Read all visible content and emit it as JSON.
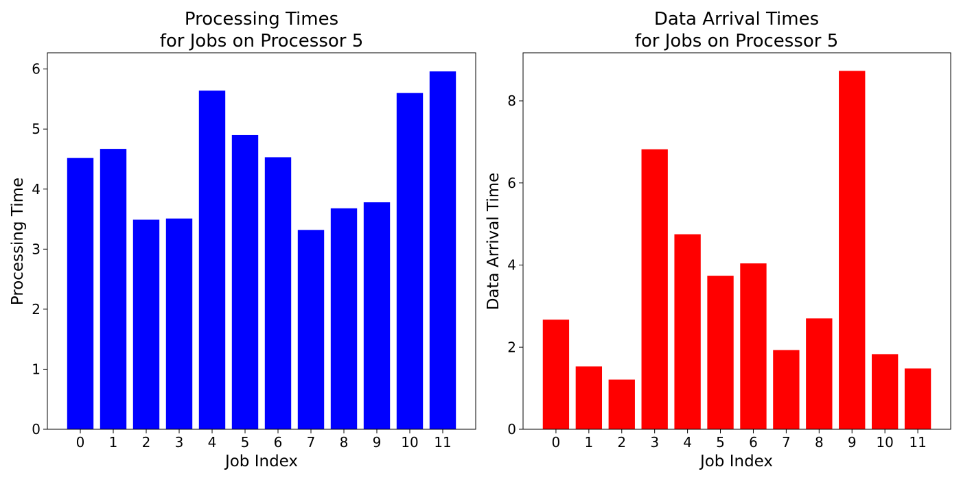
{
  "chart_data": [
    {
      "type": "bar",
      "title_lines": [
        "Processing Times",
        "for Jobs on Processor 5"
      ],
      "xlabel": "Job Index",
      "ylabel": "Processing Time",
      "categories": [
        "0",
        "1",
        "2",
        "3",
        "4",
        "5",
        "6",
        "7",
        "8",
        "9",
        "10",
        "11"
      ],
      "values": [
        4.52,
        4.67,
        3.49,
        3.51,
        5.64,
        4.9,
        4.53,
        3.32,
        3.68,
        3.78,
        5.6,
        5.96
      ],
      "ylim": [
        0,
        6.27
      ],
      "yticks": [
        0,
        1,
        2,
        3,
        4,
        5,
        6
      ],
      "color": "#0000ff",
      "grid": false
    },
    {
      "type": "bar",
      "title_lines": [
        "Data Arrival Times",
        "for Jobs on Processor 5"
      ],
      "xlabel": "Job Index",
      "ylabel": "Data Arrival Time",
      "categories": [
        "0",
        "1",
        "2",
        "3",
        "4",
        "5",
        "6",
        "7",
        "8",
        "9",
        "10",
        "11"
      ],
      "values": [
        2.67,
        1.53,
        1.21,
        6.82,
        4.75,
        3.74,
        4.04,
        1.93,
        2.7,
        8.73,
        1.83,
        1.48
      ],
      "ylim": [
        0,
        9.17
      ],
      "yticks": [
        0,
        2,
        4,
        6,
        8
      ],
      "color": "#ff0000",
      "grid": false
    }
  ]
}
